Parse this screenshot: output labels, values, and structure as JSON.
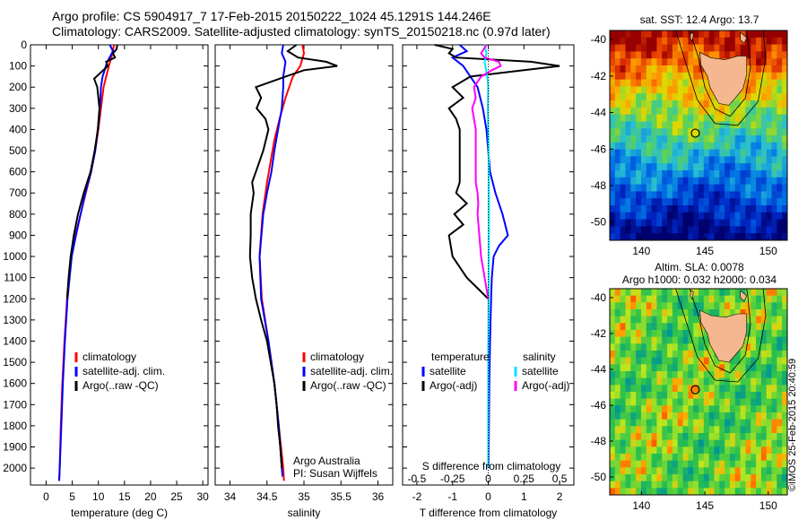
{
  "header": {
    "line1": "Argo profile: CS 5904917_7 17-Feb-2015 20150222_1024 45.1291S 144.246E",
    "line2": "Climatology: CARS2009. Satellite-adjusted climatology: synTS_20150218.nc (0.97d later)"
  },
  "map_sst": {
    "title": "sat. SST: 12.4 Argo: 13.7"
  },
  "map_sla": {
    "title_line1": "Altim. SLA: 0.0078",
    "title_line2": "Argo h1000: 0.032 h2000: 0.034"
  },
  "footer": {
    "stamp": "©IMOS 25-Feb-2015 20:40:59",
    "credit_line1": "Argo Australia",
    "credit_line2": "PI: Susan Wijffels"
  },
  "colors": {
    "climatology": "#ff0000",
    "satellite": "#0000ff",
    "argo": "#000000",
    "salinity_satellite": "#00e5ff",
    "salinity_argo": "#ff00ff"
  },
  "chart_data": [
    {
      "type": "line",
      "xlabel": "temperature (deg C)",
      "xlim": [
        -3,
        31
      ],
      "xticks": [
        0,
        5,
        10,
        15,
        20,
        25,
        30
      ],
      "ylim": [
        2080,
        0
      ],
      "yticks": [
        0,
        100,
        200,
        300,
        400,
        500,
        600,
        700,
        800,
        900,
        1000,
        1100,
        1200,
        1300,
        1400,
        1500,
        1600,
        1700,
        1800,
        1900,
        2000
      ],
      "legend": [
        "climatology",
        "satellite-adj. clim.",
        "Argo(..raw -QC)"
      ],
      "series": [
        {
          "name": "climatology",
          "color": "#ff0000",
          "depth": [
            0,
            50,
            100,
            200,
            300,
            400,
            500,
            600,
            700,
            800,
            900,
            1000,
            1200,
            1400,
            1600,
            1800,
            2000,
            2060
          ],
          "values": [
            13.0,
            12.6,
            12.0,
            11.0,
            10.5,
            10.0,
            9.4,
            8.6,
            7.6,
            6.6,
            5.6,
            4.8,
            4.0,
            3.5,
            3.1,
            2.8,
            2.6,
            2.5
          ]
        },
        {
          "name": "satellite-adj. clim.",
          "color": "#0000ff",
          "depth": [
            0,
            30,
            80,
            150,
            200,
            300,
            400,
            500,
            600,
            700,
            800,
            900,
            1000,
            1200,
            1400,
            1600,
            1800,
            2000,
            2060
          ],
          "values": [
            12.2,
            12.8,
            11.7,
            10.8,
            10.5,
            10.3,
            9.9,
            9.4,
            8.6,
            7.5,
            6.6,
            5.7,
            4.9,
            4.1,
            3.6,
            3.2,
            2.9,
            2.6,
            2.5
          ]
        },
        {
          "name": "Argo(..raw -QC)",
          "color": "#000000",
          "depth": [
            0,
            20,
            40,
            60,
            80,
            100,
            130,
            160,
            200,
            300,
            400,
            500,
            600,
            700,
            800,
            900,
            1000,
            1100,
            1200
          ],
          "values": [
            13.6,
            13.5,
            12.8,
            13.2,
            11.5,
            11.8,
            10.5,
            9.2,
            9.8,
            10.2,
            9.9,
            9.3,
            8.5,
            7.2,
            6.1,
            5.3,
            4.7,
            4.3,
            4.0
          ]
        }
      ]
    },
    {
      "type": "line",
      "xlabel": "salinity",
      "xlim": [
        33.8,
        36.2
      ],
      "xticks": [
        34,
        34.5,
        35,
        35.5,
        36
      ],
      "ylim": [
        2080,
        0
      ],
      "legend": [
        "climatology",
        "satellite-adj. clim.",
        "Argo(..raw -QC)"
      ],
      "series": [
        {
          "name": "climatology",
          "color": "#ff0000",
          "depth": [
            0,
            40,
            100,
            150,
            250,
            350,
            450,
            550,
            650,
            800,
            1000,
            1200,
            1400,
            1600,
            1800,
            2000,
            2060
          ],
          "values": [
            34.98,
            35.0,
            34.95,
            34.85,
            34.75,
            34.67,
            34.6,
            34.55,
            34.5,
            34.44,
            34.4,
            34.43,
            34.52,
            34.6,
            34.66,
            34.72,
            34.73
          ]
        },
        {
          "name": "satellite-adj. clim.",
          "color": "#0000ff",
          "depth": [
            0,
            40,
            80,
            150,
            200,
            300,
            400,
            500,
            600,
            700,
            800,
            1000,
            1200,
            1400,
            1600,
            1800,
            2000,
            2040
          ],
          "values": [
            34.72,
            34.7,
            34.75,
            34.72,
            34.72,
            34.7,
            34.65,
            34.6,
            34.56,
            34.5,
            34.45,
            34.4,
            34.42,
            34.52,
            34.6,
            34.66,
            34.7,
            34.71
          ]
        },
        {
          "name": "Argo(..raw -QC)",
          "color": "#000000",
          "depth": [
            0,
            30,
            60,
            80,
            100,
            120,
            150,
            200,
            250,
            300,
            350,
            400,
            500,
            600,
            650,
            700,
            800,
            900,
            1000,
            1100,
            1200,
            1300,
            1400,
            1500,
            1600,
            1700,
            1800,
            1900,
            2000
          ],
          "values": [
            34.9,
            34.78,
            34.92,
            35.3,
            35.45,
            35.0,
            34.75,
            34.35,
            34.42,
            34.36,
            34.48,
            34.52,
            34.45,
            34.35,
            34.3,
            34.32,
            34.28,
            34.28,
            34.27,
            34.3,
            34.35,
            34.42,
            34.5,
            34.55,
            34.6,
            34.63,
            34.65,
            34.68,
            34.7
          ]
        }
      ]
    },
    {
      "type": "line",
      "xlabel": "T difference from climatology",
      "xlabel_top": "S difference from climatology",
      "xlim": [
        -2.4,
        2.4
      ],
      "xticks": [
        -2,
        -1,
        0,
        1,
        2
      ],
      "xticks_s": [
        "-0.5",
        "-0.25",
        "0",
        "0.25",
        "0.5"
      ],
      "xticks_s_values": [
        -0.5,
        -0.25,
        0,
        0.25,
        0.5
      ],
      "ylim": [
        2080,
        0
      ],
      "legend_headers": [
        "temperature",
        "salinity"
      ],
      "legend": [
        "satellite",
        "Argo(-adj)",
        "satellite",
        "Argo(-adj)"
      ],
      "series": [
        {
          "name": "satellite",
          "group": "temperature",
          "color": "#0000ff",
          "depth": [
            0,
            30,
            60,
            100,
            150,
            200,
            300,
            400,
            500,
            600,
            700,
            800,
            900,
            950,
            1000,
            1100,
            1200,
            1400,
            1600,
            1800,
            2000
          ],
          "values": [
            -0.8,
            -0.6,
            -1.0,
            -0.7,
            -0.5,
            -0.3,
            -0.15,
            -0.05,
            0.0,
            0.05,
            0.2,
            0.4,
            0.55,
            0.3,
            0.15,
            0.1,
            0.08,
            0.05,
            0.03,
            0.02,
            0.01
          ]
        },
        {
          "name": "Argo(-adj)",
          "group": "temperature",
          "color": "#000000",
          "depth": [
            0,
            20,
            40,
            60,
            80,
            100,
            120,
            150,
            200,
            250,
            300,
            350,
            400,
            650,
            700,
            750,
            800,
            850,
            900,
            1000,
            1050,
            1100,
            1150,
            1200
          ],
          "values": [
            -1.5,
            -1.0,
            -1.1,
            -0.9,
            1.2,
            2.0,
            1.0,
            -0.5,
            -1.0,
            -0.7,
            -1.1,
            -0.9,
            -0.8,
            -0.8,
            -0.9,
            -0.6,
            -0.95,
            -0.7,
            -1.1,
            -1.0,
            -0.8,
            -0.6,
            -0.3,
            0.0
          ]
        },
        {
          "name": "satellite",
          "group": "salinity",
          "color": "#00e5ff",
          "depth": [
            0,
            40,
            80,
            120,
            160,
            200,
            300,
            400,
            500,
            700,
            900,
            1200,
            1500,
            1800,
            2000
          ],
          "values": [
            -0.1,
            -0.05,
            -0.1,
            -0.06,
            -0.02,
            0.0,
            -0.01,
            0.0,
            0.01,
            0.02,
            0.02,
            0.01,
            0.0,
            0.0,
            0.0
          ]
        },
        {
          "name": "Argo(-adj)",
          "group": "salinity",
          "color": "#ff00ff",
          "depth": [
            0,
            40,
            60,
            80,
            100,
            120,
            150,
            200,
            250,
            300,
            350,
            400,
            650,
            700,
            750,
            800,
            900,
            1000,
            1100,
            1200
          ],
          "values": [
            -0.05,
            -0.2,
            -0.1,
            0.3,
            0.35,
            0.1,
            -0.2,
            -0.4,
            -0.35,
            -0.45,
            -0.4,
            -0.35,
            -0.35,
            -0.3,
            -0.28,
            -0.3,
            -0.25,
            -0.2,
            -0.1,
            0.0
          ]
        }
      ]
    },
    {
      "type": "heatmap",
      "title": "sat. SST: 12.4 Argo: 13.7",
      "xticks": [
        140,
        145,
        150
      ],
      "yticks": [
        -40,
        -42,
        -44,
        -46,
        -48,
        -50
      ],
      "xlim": [
        137.5,
        151.5
      ],
      "ylim": [
        -51,
        -39.5
      ],
      "marker": {
        "lon": 144.25,
        "lat": -45.13
      }
    },
    {
      "type": "heatmap",
      "title": "Altim. SLA: 0.0078",
      "subtitle": "Argo h1000: 0.032 h2000: 0.034",
      "xticks": [
        140,
        145,
        150
      ],
      "yticks": [
        -40,
        -42,
        -44,
        -46,
        -48,
        -50
      ],
      "xlim": [
        137.5,
        151.5
      ],
      "ylim": [
        -51,
        -39.5
      ],
      "marker": {
        "lon": 144.25,
        "lat": -45.13
      }
    }
  ]
}
